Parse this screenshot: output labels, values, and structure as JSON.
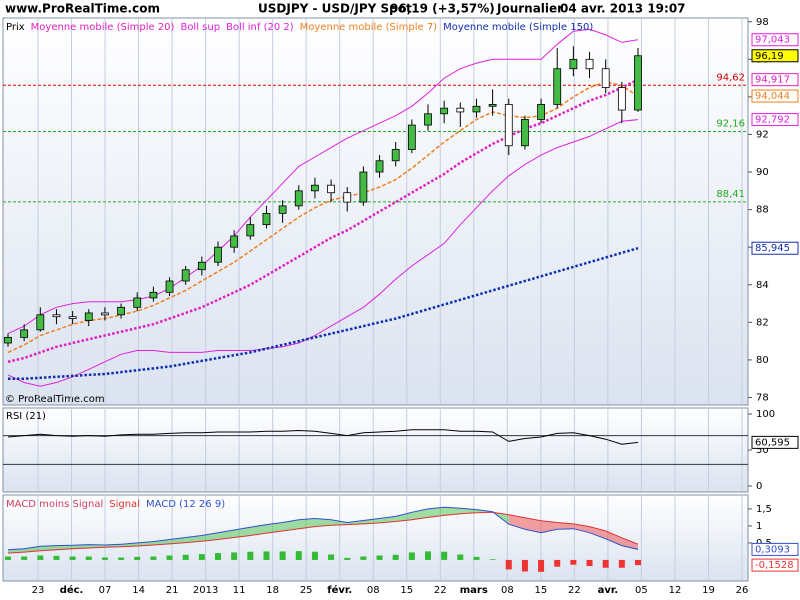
{
  "header": {
    "site": "www.ProRealTime.com",
    "title": "USDJPY - USD/JPY Spot",
    "quote": "96,19 (+3,57%)",
    "period": "Journalier",
    "datetime": "04 avr. 2013 19:07",
    "copyright": "© ProRealTime.com"
  },
  "chart_data": [
    {
      "type": "candlestick",
      "name": "Prix",
      "up_color": "#44bb44",
      "down_color": "#ffffff",
      "last_label": "96,19",
      "label_fill": "#ffff00",
      "ylim": [
        77.6,
        98.2
      ],
      "yticks": [
        98,
        96,
        94,
        92,
        90,
        88,
        86,
        84,
        82,
        80,
        78
      ],
      "x_labels": [
        "23",
        "déc.",
        "07",
        "14",
        "21",
        "2013",
        "11",
        "18",
        "25",
        "févr.",
        "08",
        "15",
        "22",
        "mars",
        "08",
        "15",
        "22",
        "avr.",
        "05",
        "12",
        "19",
        "26"
      ],
      "ohlc": [
        [
          80.9,
          81.4,
          80.7,
          81.2
        ],
        [
          81.2,
          81.9,
          81.0,
          81.6
        ],
        [
          81.6,
          82.8,
          81.5,
          82.4
        ],
        [
          82.4,
          82.7,
          81.9,
          82.3
        ],
        [
          82.3,
          82.6,
          81.9,
          82.2
        ],
        [
          82.1,
          82.7,
          81.8,
          82.5
        ],
        [
          82.5,
          82.8,
          82.1,
          82.4
        ],
        [
          82.4,
          83.0,
          82.2,
          82.8
        ],
        [
          82.8,
          83.6,
          82.6,
          83.3
        ],
        [
          83.3,
          83.9,
          83.1,
          83.6
        ],
        [
          83.6,
          84.4,
          83.4,
          84.2
        ],
        [
          84.2,
          85.0,
          84.0,
          84.8
        ],
        [
          84.8,
          85.5,
          84.5,
          85.2
        ],
        [
          85.2,
          86.3,
          85.0,
          86.0
        ],
        [
          86.0,
          86.9,
          85.7,
          86.6
        ],
        [
          86.6,
          87.6,
          86.4,
          87.2
        ],
        [
          87.2,
          88.2,
          87.0,
          87.8
        ],
        [
          87.8,
          88.5,
          87.3,
          88.2
        ],
        [
          88.2,
          89.3,
          88.0,
          89.0
        ],
        [
          89.0,
          89.7,
          88.6,
          89.3
        ],
        [
          89.3,
          89.6,
          88.4,
          88.9
        ],
        [
          88.9,
          89.2,
          87.9,
          88.4
        ],
        [
          88.4,
          90.3,
          88.2,
          90.0
        ],
        [
          90.0,
          90.9,
          89.7,
          90.6
        ],
        [
          90.6,
          91.6,
          90.3,
          91.2
        ],
        [
          91.2,
          92.8,
          91.0,
          92.5
        ],
        [
          92.5,
          93.6,
          92.2,
          93.1
        ],
        [
          93.1,
          93.8,
          92.6,
          93.4
        ],
        [
          93.4,
          93.7,
          92.4,
          93.2
        ],
        [
          93.2,
          93.9,
          92.9,
          93.5
        ],
        [
          93.5,
          94.4,
          93.0,
          93.6
        ],
        [
          93.6,
          93.9,
          90.9,
          91.4
        ],
        [
          91.4,
          93.0,
          91.2,
          92.8
        ],
        [
          92.8,
          93.9,
          92.6,
          93.6
        ],
        [
          93.6,
          96.6,
          93.4,
          95.5
        ],
        [
          95.5,
          96.7,
          95.1,
          96.0
        ],
        [
          96.0,
          96.4,
          95.0,
          95.5
        ],
        [
          95.5,
          96.0,
          94.2,
          94.5
        ],
        [
          94.5,
          94.8,
          92.6,
          93.3
        ],
        [
          93.3,
          96.6,
          93.2,
          96.19
        ]
      ],
      "series": [
        {
          "name": "Moyenne mobile (Simple 20)",
          "color": "#e020c0",
          "style": "dotted",
          "last_label": "94,917",
          "values": [
            79.9,
            80.1,
            80.4,
            80.7,
            80.9,
            81.1,
            81.3,
            81.5,
            81.7,
            81.9,
            82.2,
            82.5,
            82.8,
            83.2,
            83.6,
            84.0,
            84.5,
            85.0,
            85.5,
            86.0,
            86.5,
            86.9,
            87.4,
            87.9,
            88.4,
            88.9,
            89.4,
            89.9,
            90.5,
            91.0,
            91.5,
            91.9,
            92.3,
            92.6,
            93.0,
            93.4,
            93.8,
            94.1,
            94.5,
            94.917
          ]
        },
        {
          "name": "Boll sup",
          "color": "#e020e0",
          "style": "solid",
          "last_label": "97,043",
          "values": [
            81.4,
            81.8,
            82.4,
            82.8,
            83.0,
            83.1,
            83.1,
            83.1,
            83.2,
            83.4,
            83.8,
            84.4,
            85.0,
            85.8,
            86.6,
            87.6,
            88.5,
            89.4,
            90.3,
            90.8,
            91.3,
            91.8,
            92.2,
            92.6,
            93.0,
            93.5,
            94.2,
            95.0,
            95.5,
            95.8,
            96.0,
            96.0,
            96.0,
            96.0,
            96.8,
            97.5,
            97.6,
            97.3,
            96.9,
            97.043
          ]
        },
        {
          "name": "Boll inf (20 2)",
          "color": "#e020e0",
          "style": "solid",
          "last_label": "92,792",
          "values": [
            79.2,
            78.8,
            78.6,
            78.8,
            79.1,
            79.5,
            79.9,
            80.3,
            80.5,
            80.5,
            80.4,
            80.4,
            80.4,
            80.5,
            80.5,
            80.5,
            80.6,
            80.7,
            80.9,
            81.3,
            81.8,
            82.3,
            82.8,
            83.5,
            84.3,
            85.0,
            85.6,
            86.2,
            87.2,
            88.1,
            89.0,
            89.8,
            90.4,
            90.9,
            91.3,
            91.6,
            91.9,
            92.3,
            92.7,
            92.792
          ]
        },
        {
          "name": "Moyenne mobile (Simple 7)",
          "color": "#f08020",
          "style": "dashed",
          "last_label": "94,044",
          "values": [
            80.4,
            80.8,
            81.3,
            81.6,
            81.9,
            82.1,
            82.2,
            82.4,
            82.6,
            82.9,
            83.3,
            83.7,
            84.2,
            84.7,
            85.2,
            85.8,
            86.4,
            87.0,
            87.6,
            88.1,
            88.5,
            88.7,
            88.9,
            89.2,
            89.6,
            90.2,
            90.9,
            91.6,
            92.2,
            92.8,
            93.2,
            93.0,
            92.9,
            93.0,
            93.4,
            94.0,
            94.5,
            94.8,
            94.6,
            94.044
          ]
        },
        {
          "name": "Moyenne mobile (Simple 150)",
          "color": "#1030b0",
          "style": "dotted",
          "last_label": "85,945",
          "values": [
            79.0,
            79.0,
            79.05,
            79.1,
            79.15,
            79.2,
            79.25,
            79.35,
            79.45,
            79.55,
            79.65,
            79.8,
            79.95,
            80.1,
            80.25,
            80.4,
            80.6,
            80.8,
            81.0,
            81.2,
            81.4,
            81.6,
            81.8,
            82.0,
            82.2,
            82.45,
            82.7,
            82.95,
            83.2,
            83.45,
            83.7,
            83.95,
            84.2,
            84.45,
            84.7,
            84.95,
            85.2,
            85.45,
            85.7,
            85.945
          ]
        }
      ],
      "levels": [
        {
          "value": 94.62,
          "label": "94,62",
          "color": "#dd0000"
        },
        {
          "value": 92.16,
          "label": "92,16",
          "color": "#22aa22"
        },
        {
          "value": 88.41,
          "label": "88,41",
          "color": "#22aa22"
        }
      ]
    },
    {
      "type": "line",
      "ylim": [
        -8.3,
        108.3
      ],
      "yticks": [
        100,
        50,
        0
      ],
      "levels": [
        70,
        30
      ],
      "series": [
        {
          "name": "RSI (21)",
          "color": "#000000",
          "last_label": "60,595",
          "values": [
            68,
            70,
            72,
            70,
            69,
            70,
            69,
            71,
            72,
            72,
            73,
            74,
            74,
            75,
            75,
            75,
            76,
            76,
            77,
            76,
            73,
            70,
            74,
            75,
            76,
            78,
            78,
            78,
            76,
            76,
            75,
            62,
            66,
            68,
            73,
            74,
            70,
            65,
            58,
            60.595
          ]
        }
      ]
    },
    {
      "type": "macd",
      "ylim": [
        -0.62,
        1.91
      ],
      "yticks": [
        {
          "value": 1.5,
          "label": "1,5"
        },
        1,
        {
          "value": 0.5,
          "label": "0,5"
        }
      ],
      "series": [
        {
          "name": "MACD moins Signal",
          "legend_color": "#d04060",
          "color": "#33bb33",
          "negative_color": "#ee3333",
          "last_label": "-0,1528",
          "values": [
            0.1,
            0.1,
            0.13,
            0.12,
            0.1,
            0.1,
            0.07,
            0.07,
            0.09,
            0.1,
            0.13,
            0.15,
            0.17,
            0.2,
            0.22,
            0.24,
            0.25,
            0.25,
            0.26,
            0.24,
            0.16,
            0.06,
            0.1,
            0.13,
            0.15,
            0.22,
            0.25,
            0.24,
            0.16,
            0.09,
            0.02,
            -0.28,
            -0.34,
            -0.35,
            -0.2,
            -0.14,
            -0.18,
            -0.23,
            -0.23,
            -0.1528
          ]
        },
        {
          "name": "Signal",
          "color": "#dd3333",
          "values": [
            0.2,
            0.23,
            0.27,
            0.3,
            0.33,
            0.35,
            0.37,
            0.39,
            0.41,
            0.44,
            0.47,
            0.51,
            0.55,
            0.6,
            0.66,
            0.72,
            0.79,
            0.85,
            0.92,
            0.98,
            1.02,
            1.04,
            1.06,
            1.09,
            1.13,
            1.18,
            1.25,
            1.31,
            1.36,
            1.39,
            1.4,
            1.33,
            1.24,
            1.15,
            1.1,
            1.06,
            0.98,
            0.85,
            0.65,
            0.4621
          ]
        },
        {
          "name": "MACD (12 26 9)",
          "color": "#3050d0",
          "last_label": "0,3093",
          "values": [
            0.3,
            0.33,
            0.4,
            0.42,
            0.43,
            0.45,
            0.44,
            0.46,
            0.5,
            0.54,
            0.6,
            0.66,
            0.72,
            0.8,
            0.88,
            0.96,
            1.04,
            1.1,
            1.18,
            1.22,
            1.18,
            1.1,
            1.16,
            1.22,
            1.28,
            1.4,
            1.5,
            1.55,
            1.52,
            1.48,
            1.42,
            1.05,
            0.9,
            0.8,
            0.9,
            0.92,
            0.8,
            0.62,
            0.42,
            0.3093
          ]
        }
      ]
    }
  ]
}
